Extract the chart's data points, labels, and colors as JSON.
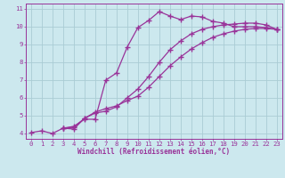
{
  "background_color": "#cce8ee",
  "grid_color": "#aaccd4",
  "line_color": "#993399",
  "marker": "+",
  "markersize": 4,
  "linewidth": 0.9,
  "markeredgewidth": 1.0,
  "xlim": [
    -0.5,
    23.5
  ],
  "ylim": [
    3.7,
    11.3
  ],
  "xticks": [
    0,
    1,
    2,
    3,
    4,
    5,
    6,
    7,
    8,
    9,
    10,
    11,
    12,
    13,
    14,
    15,
    16,
    17,
    18,
    19,
    20,
    21,
    22,
    23
  ],
  "yticks": [
    4,
    5,
    6,
    7,
    8,
    9,
    10,
    11
  ],
  "xlabel": "Windchill (Refroidissement éolien,°C)",
  "xlabel_fontsize": 5.5,
  "tick_fontsize": 5.2,
  "curves": [
    {
      "x": [
        0,
        1,
        2,
        3,
        4,
        5,
        6,
        7,
        8,
        9,
        10,
        11,
        12,
        13,
        14,
        15,
        16,
        17,
        18,
        19,
        20,
        21,
        22,
        23
      ],
      "y": [
        4.05,
        4.15,
        4.0,
        4.3,
        4.4,
        4.8,
        4.8,
        7.0,
        7.4,
        8.85,
        9.95,
        10.35,
        10.85,
        10.6,
        10.4,
        10.6,
        10.55,
        10.3,
        10.2,
        10.0,
        10.0,
        10.0,
        9.95,
        9.85
      ]
    },
    {
      "x": [
        3,
        4,
        5,
        6,
        7,
        8,
        9,
        10,
        11,
        12,
        13,
        14,
        15,
        16,
        17,
        18,
        19,
        20,
        21,
        22,
        23
      ],
      "y": [
        4.3,
        4.25,
        4.85,
        5.15,
        5.25,
        5.5,
        6.0,
        6.5,
        7.2,
        8.0,
        8.7,
        9.2,
        9.6,
        9.85,
        10.0,
        10.1,
        10.15,
        10.2,
        10.2,
        10.1,
        9.85
      ]
    },
    {
      "x": [
        3,
        4,
        5,
        6,
        7,
        8,
        9,
        10,
        11,
        12,
        13,
        14,
        15,
        16,
        17,
        18,
        19,
        20,
        21,
        22,
        23
      ],
      "y": [
        4.3,
        4.35,
        4.85,
        5.2,
        5.4,
        5.55,
        5.85,
        6.1,
        6.6,
        7.2,
        7.8,
        8.3,
        8.75,
        9.1,
        9.4,
        9.6,
        9.75,
        9.85,
        9.9,
        9.9,
        9.85
      ]
    }
  ]
}
